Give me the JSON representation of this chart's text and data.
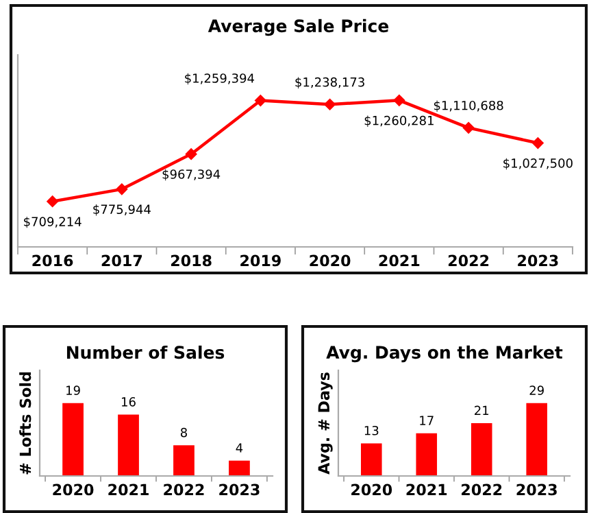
{
  "chart_data": [
    {
      "type": "line",
      "title": "Average Sale Price",
      "categories": [
        "2016",
        "2017",
        "2018",
        "2019",
        "2020",
        "2021",
        "2022",
        "2023"
      ],
      "series": [
        {
          "color": "#ff0000",
          "values": [
            709214,
            775944,
            967394,
            1259394,
            1238173,
            1260281,
            1110688,
            1027500
          ],
          "value_labels": [
            "$709,214",
            "$775,944",
            "$967,394",
            "$1,259,394",
            "$1,238,173",
            "$1,260,281",
            "$1,110,688",
            "$1,027,500"
          ]
        }
      ],
      "marker": "diamond",
      "grid": false,
      "legend": false,
      "tick_labels": "x"
    },
    {
      "type": "bar",
      "title": "Number of Sales",
      "ylabel": "# Lofts Sold",
      "categories": [
        "2020",
        "2021",
        "2022",
        "2023"
      ],
      "values": [
        19,
        16,
        8,
        4
      ],
      "color": "#ff0000",
      "data_labels": true,
      "grid": false,
      "legend": false,
      "tick_labels": "x"
    },
    {
      "type": "bar",
      "title": "Avg. Days on the Market",
      "ylabel": "Avg. # Days",
      "categories": [
        "2020",
        "2021",
        "2022",
        "2023"
      ],
      "values": [
        13,
        17,
        21,
        29
      ],
      "color": "#ff0000",
      "data_labels": true,
      "grid": false,
      "legend": false,
      "tick_labels": "x"
    }
  ]
}
